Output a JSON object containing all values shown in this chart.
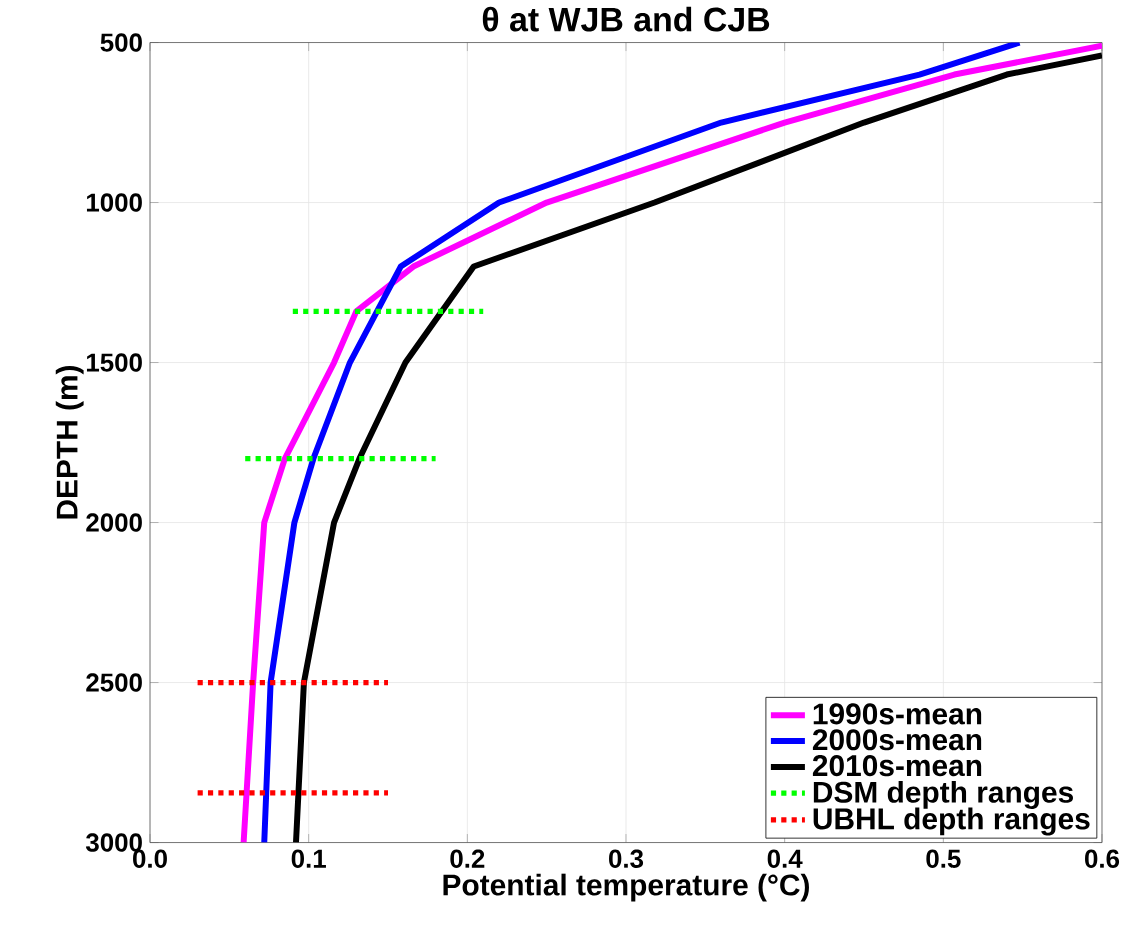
{
  "chart_data": {
    "type": "line",
    "title": "θ at WJB and CJB",
    "xlabel": "Potential temperature (°C)",
    "ylabel": "DEPTH (m)",
    "xlim": [
      0,
      0.6
    ],
    "xticks": [
      {
        "value": 0,
        "label": "0.0"
      },
      {
        "value": 0.1,
        "label": "0.1"
      },
      {
        "value": 0.2,
        "label": "0.2"
      },
      {
        "value": 0.3,
        "label": "0.3"
      },
      {
        "value": 0.4,
        "label": "0.4"
      },
      {
        "value": 0.5,
        "label": "0.5"
      },
      {
        "value": 0.6,
        "label": "0.6"
      }
    ],
    "ylim": [
      3000,
      500
    ],
    "yticks": [
      500,
      1000,
      1500,
      2000,
      2500,
      3000
    ],
    "grid": true,
    "legend": "bottom right",
    "marker": "none",
    "series": [
      {
        "name": "1990s-mean",
        "color": "#ff00ff",
        "line_style": "solid",
        "x": [
          0.059,
          0.065,
          0.072,
          0.085,
          0.116,
          0.13,
          0.166,
          0.25,
          0.4,
          0.507,
          0.6
        ],
        "values": [
          3000,
          2500,
          2000,
          1800,
          1500,
          1340,
          1200,
          1000,
          750,
          600,
          510
        ]
      },
      {
        "name": "2000s-mean",
        "color": "#0000ff",
        "line_style": "solid",
        "x": [
          0.072,
          0.076,
          0.091,
          0.103,
          0.126,
          0.158,
          0.22,
          0.36,
          0.485,
          0.548
        ],
        "values": [
          3000,
          2500,
          2000,
          1800,
          1500,
          1200,
          1000,
          750,
          600,
          500
        ]
      },
      {
        "name": "2010s-mean",
        "color": "#000000",
        "line_style": "solid",
        "x": [
          0.092,
          0.097,
          0.116,
          0.132,
          0.161,
          0.204,
          0.318,
          0.45,
          0.54,
          0.6
        ],
        "values": [
          3000,
          2500,
          2000,
          1800,
          1500,
          1200,
          1000,
          750,
          600,
          540
        ]
      },
      {
        "name": "DSM depth ranges",
        "color": "#00ff00",
        "line_style": "dotted",
        "x": [
          0.09,
          0.21
        ],
        "values": [
          1340,
          1340
        ]
      },
      {
        "color": "#00ff00",
        "line_style": "dotted",
        "x": [
          0.06,
          0.18
        ],
        "values": [
          1800,
          1800
        ]
      },
      {
        "name": "UBHL depth ranges",
        "color": "#ff0000",
        "line_style": "dotted",
        "x": [
          0.03,
          0.15
        ],
        "values": [
          2500,
          2500
        ]
      },
      {
        "color": "#ff0000",
        "line_style": "dotted",
        "x": [
          0.03,
          0.15
        ],
        "values": [
          2845,
          2845
        ]
      }
    ]
  }
}
